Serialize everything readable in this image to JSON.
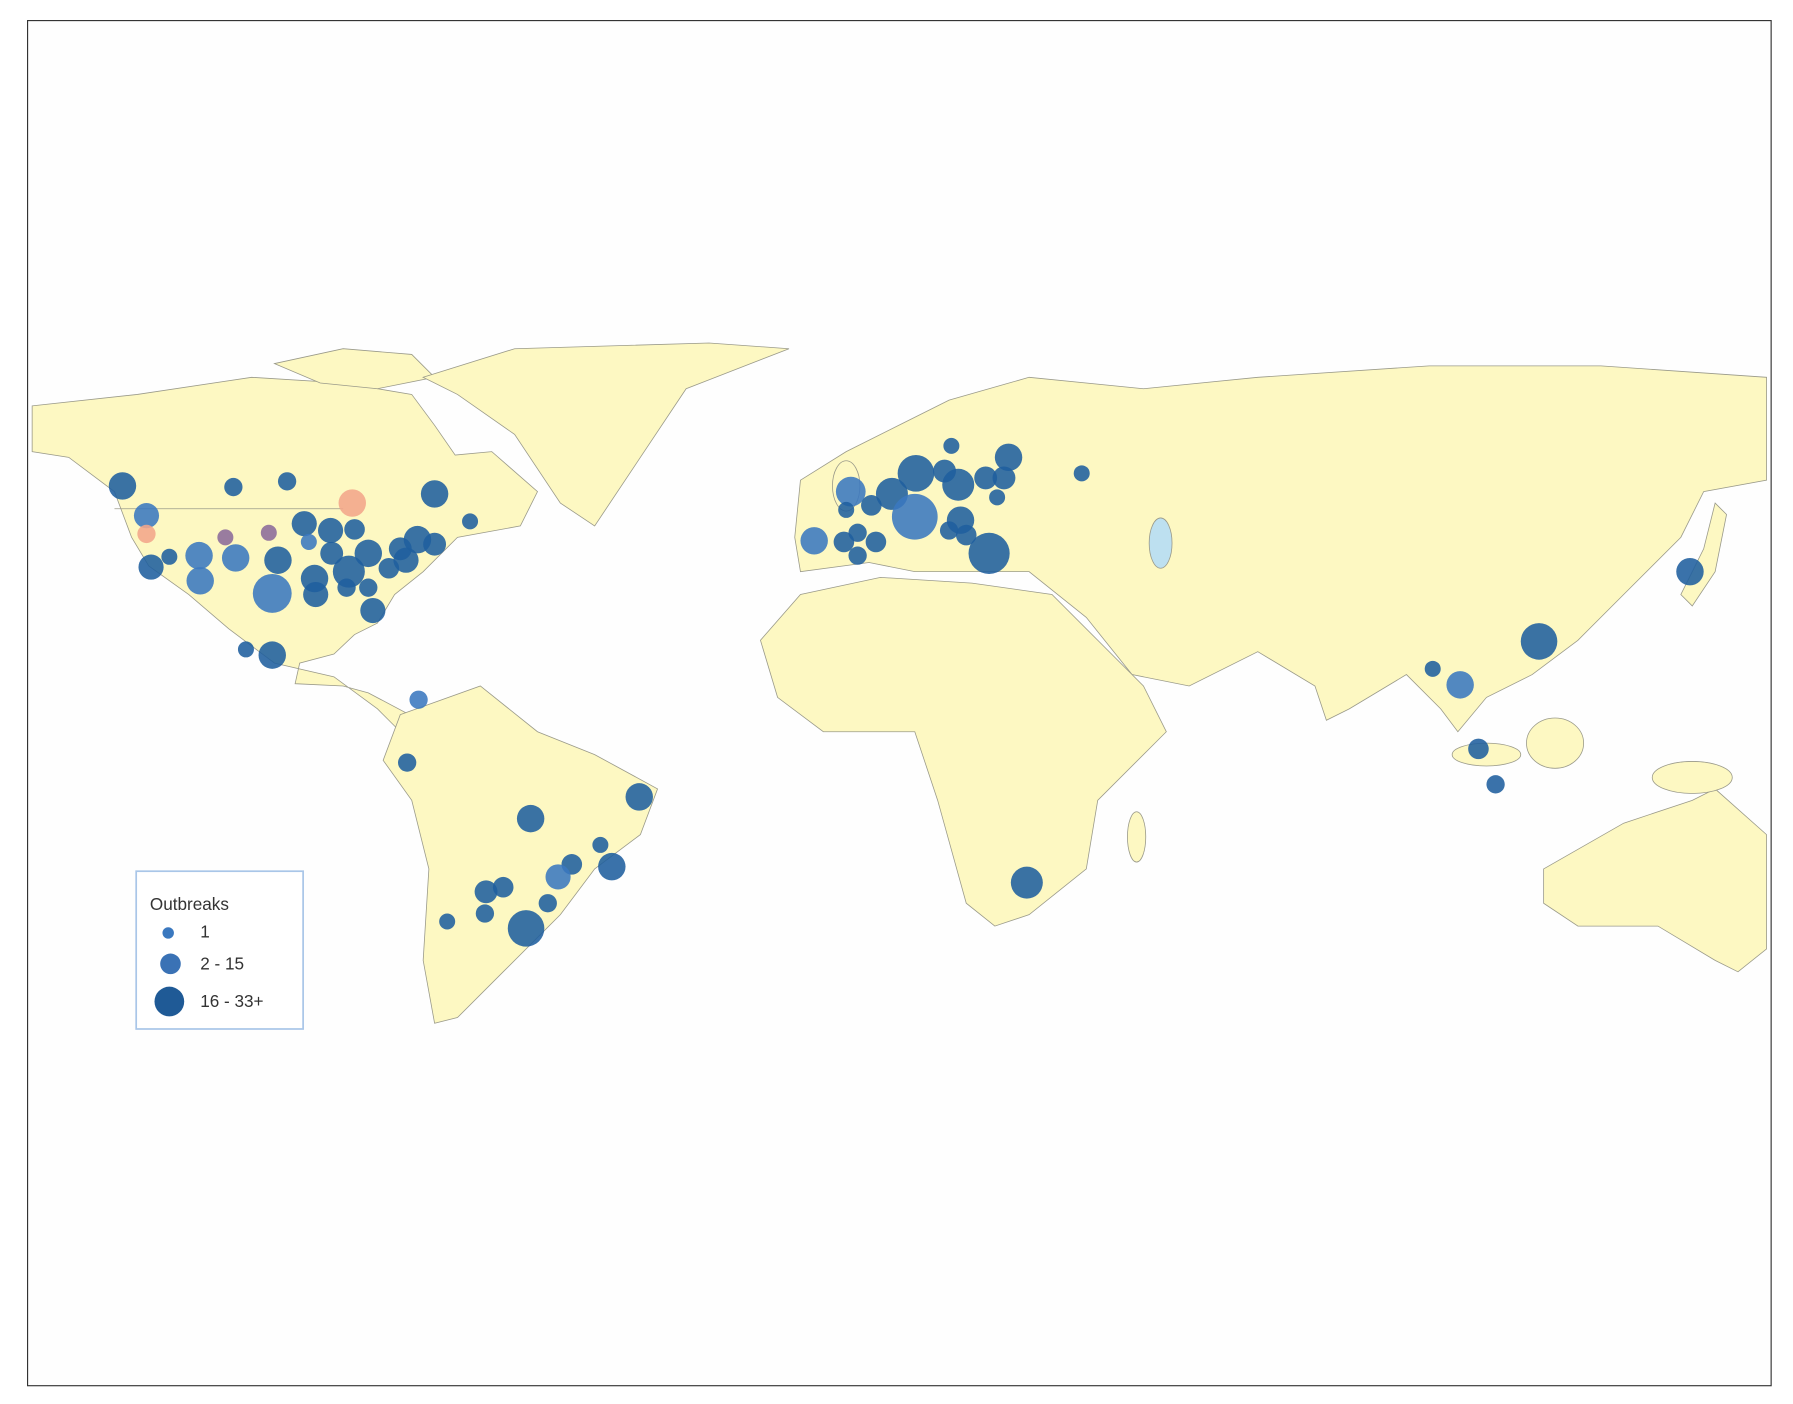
{
  "legend": {
    "title": "Outbreaks",
    "items": [
      "1",
      "2 - 15",
      "16 - 33+"
    ]
  }
}
